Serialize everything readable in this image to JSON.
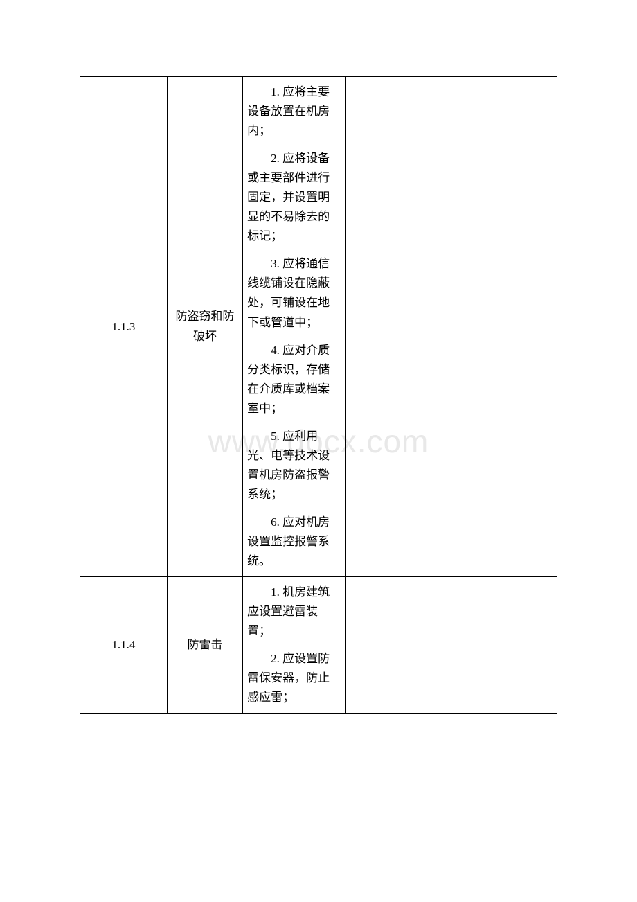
{
  "watermark": "www.docx.com",
  "table": {
    "columns": {
      "id_width": 115,
      "name_width": 100,
      "content_width": 135,
      "empty1_width": 135,
      "empty2_width": 145
    },
    "border_color": "#000000",
    "background_color": "#ffffff",
    "font_size": 17,
    "line_height": 1.65,
    "rows": [
      {
        "id": "1.1.3",
        "name": "防盗窃和防破坏",
        "items": [
          "1. 应将主要设备放置在机房内；",
          "2. 应将设备或主要部件进行固定，并设置明显的不易除去的标记；",
          "3. 应将通信线缆铺设在隐蔽处，可铺设在地下或管道中；",
          "4. 应对介质分类标识，存储在介质库或档案室中；",
          "5. 应利用光、电等技术设置机房防盗报警系统；",
          "6. 应对机房设置监控报警系统。"
        ]
      },
      {
        "id": "1.1.4",
        "name": "防雷击",
        "items": [
          "1. 机房建筑应设置避雷装置；",
          "2. 应设置防雷保安器，防止感应雷；"
        ]
      }
    ]
  },
  "watermark_style": {
    "color": "#e8e8e8",
    "font_size": 46
  }
}
